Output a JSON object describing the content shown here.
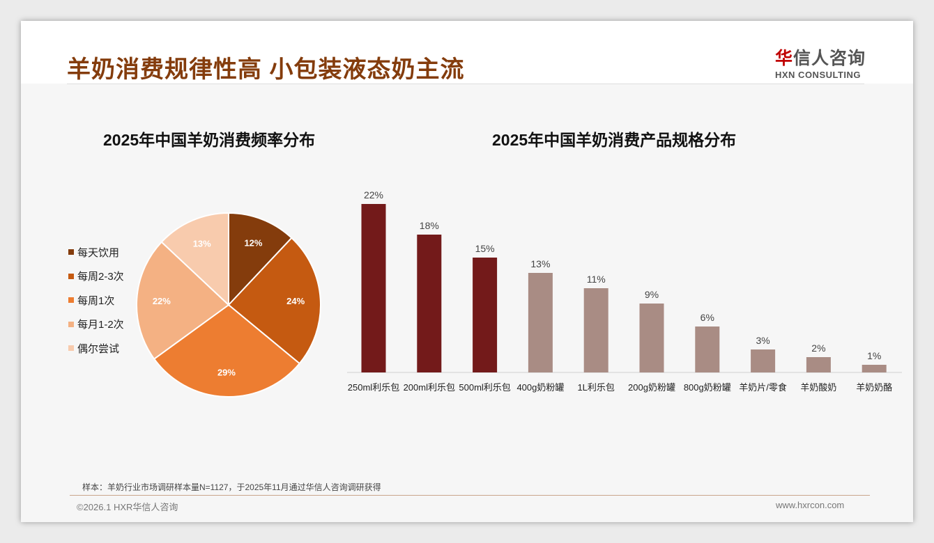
{
  "header": {
    "title": "羊奶消费规律性高 小包装液态奶主流",
    "logo_cn_mark": "华",
    "logo_cn_rest": "信人咨询",
    "logo_en": "HXN CONSULTING"
  },
  "footer": {
    "note": "样本：羊奶行业市场调研样本量N=1127，于2025年11月通过华信人咨询调研获得",
    "copyright": "©2026.1 HXR华信人咨询",
    "url": "www.hxrcon.com"
  },
  "watermark": "华信人咨询 HXN CONSULTING",
  "chart_data": [
    {
      "type": "pie",
      "title": "2025年中国羊奶消费频率分布",
      "labels": [
        "每天饮用",
        "每周2-3次",
        "每周1次",
        "每月1-2次",
        "偶尔尝试"
      ],
      "values": [
        12,
        24,
        29,
        22,
        13
      ],
      "display": [
        "12%",
        "24%",
        "29%",
        "22%",
        "13%"
      ],
      "colors": [
        "#843c0c",
        "#c55a11",
        "#ed7d31",
        "#f4b183",
        "#f8cbad"
      ],
      "legend": "left"
    },
    {
      "type": "bar",
      "title": "2025年中国羊奶消费产品规格分布",
      "categories": [
        "250ml利乐包",
        "200ml利乐包",
        "500ml利乐包",
        "400g奶粉罐",
        "1L利乐包",
        "200g奶粉罐",
        "800g奶粉罐",
        "羊奶片/零食",
        "羊奶酸奶",
        "羊奶奶酪"
      ],
      "values": [
        22,
        18,
        15,
        13,
        11,
        9,
        6,
        3,
        2,
        1
      ],
      "display": [
        "22%",
        "18%",
        "15%",
        "13%",
        "11%",
        "9%",
        "6%",
        "3%",
        "2%",
        "1%"
      ],
      "colors": {
        "highlight": "#731a1a",
        "normal": "#a98c84"
      },
      "highlight_count": 3,
      "ylim": [
        0,
        22
      ]
    }
  ]
}
